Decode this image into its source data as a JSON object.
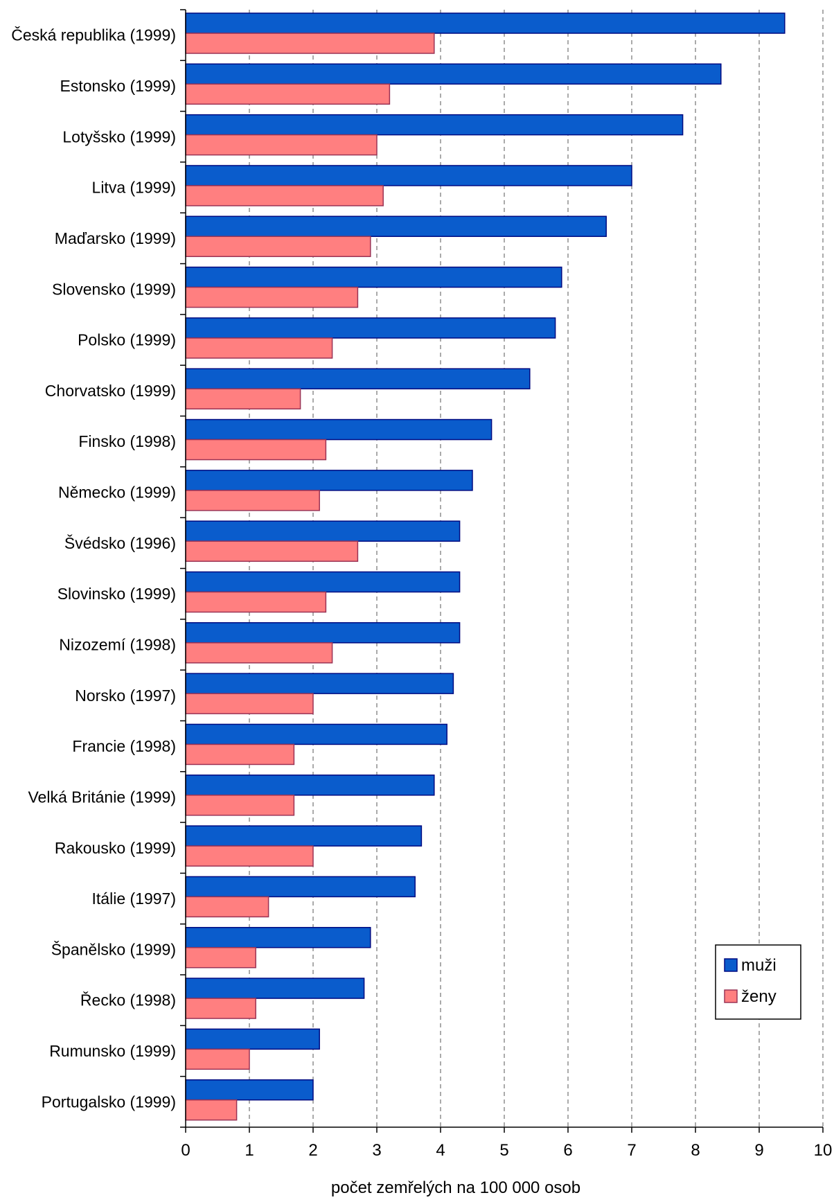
{
  "chart_data": {
    "type": "bar",
    "orientation": "horizontal",
    "categories": [
      "Česká republika (1999)",
      "Estonsko (1999)",
      "Lotyšsko (1999)",
      "Litva (1999)",
      "Maďarsko (1999)",
      "Slovensko (1999)",
      "Polsko (1999)",
      "Chorvatsko (1999)",
      "Finsko (1998)",
      "Německo (1999)",
      "Švédsko (1996)",
      "Slovinsko (1999)",
      "Nizozemí (1998)",
      "Norsko (1997)",
      "Francie (1998)",
      "Velká Británie (1999)",
      "Rakousko (1999)",
      "Itálie (1997)",
      "Španělsko (1999)",
      "Řecko (1998)",
      "Rumunsko (1999)",
      "Portugalsko (1999)"
    ],
    "series": [
      {
        "name": "muži",
        "color": "#0a5ccc",
        "values": [
          9.4,
          8.4,
          7.8,
          7.0,
          6.6,
          5.9,
          5.8,
          5.4,
          4.8,
          4.5,
          4.3,
          4.3,
          4.3,
          4.2,
          4.1,
          3.9,
          3.7,
          3.6,
          2.9,
          2.8,
          2.1,
          2.0
        ]
      },
      {
        "name": "ženy",
        "color": "#ff7f80",
        "values": [
          3.9,
          3.2,
          3.0,
          3.1,
          2.9,
          2.7,
          2.3,
          1.8,
          2.2,
          2.1,
          2.7,
          2.2,
          2.3,
          2.0,
          1.7,
          1.7,
          2.0,
          1.3,
          1.1,
          1.1,
          1.0,
          0.8
        ]
      }
    ],
    "xlabel": "počet zemřelých na 100 000 osob",
    "xlim": [
      0,
      10
    ],
    "xticks": [
      "0",
      "1",
      "2",
      "3",
      "4",
      "5",
      "6",
      "7",
      "8",
      "9",
      "10"
    ],
    "grid": "vertical dashed",
    "legend": "bottom-right"
  }
}
